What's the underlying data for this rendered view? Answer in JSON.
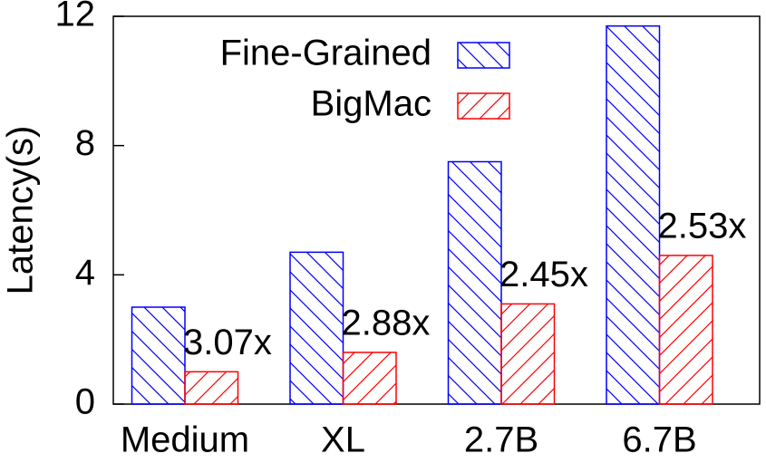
{
  "chart_data": {
    "type": "bar",
    "y_label": "Latency(s)",
    "categories": [
      "Medium",
      "XL",
      "2.7B",
      "6.7B"
    ],
    "series": [
      {
        "name": "Fine-Grained",
        "color": "#0000ff",
        "values": [
          3.0,
          4.7,
          7.5,
          11.7
        ]
      },
      {
        "name": "BigMac",
        "color": "#ff0000",
        "values": [
          1.0,
          1.6,
          3.1,
          4.6
        ]
      }
    ],
    "annotations": [
      "3.07x",
      "2.88x",
      "2.45x",
      "2.53x"
    ],
    "ylim": [
      0,
      12
    ],
    "yticks": [
      0,
      4,
      8,
      12
    ],
    "legend": "upper right"
  }
}
